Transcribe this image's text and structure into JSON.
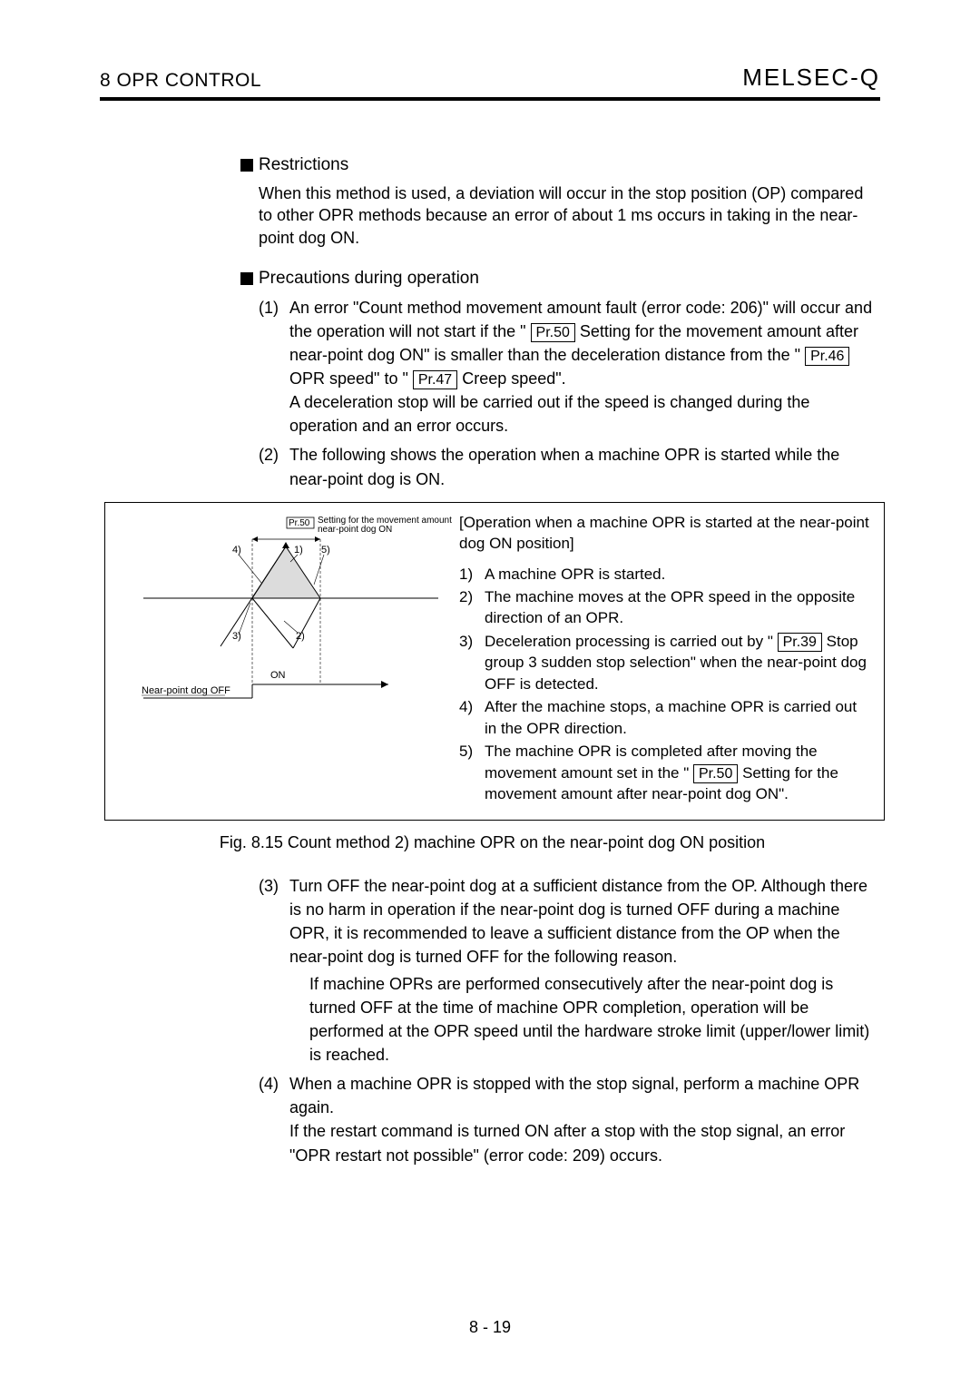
{
  "header": {
    "chapter": "8   OPR CONTROL",
    "brand": "MELSEC-Q"
  },
  "restrictions": {
    "heading": "Restrictions",
    "body": "When this method is used, a deviation will occur in the stop position (OP) compared to other OPR methods because an error of about 1 ms occurs in taking in the near-point dog ON."
  },
  "precautions": {
    "heading": "Precautions during operation",
    "items": [
      {
        "n": "(1)",
        "parts": [
          "An error \"Count method movement amount fault (error code: 206)\" will occur and the operation will not start if the \" ",
          {
            "pr": "Pr.50"
          },
          "  Setting for the movement amount after near-point dog ON\" is smaller than the deceleration distance from the \" ",
          {
            "pr": "Pr.46"
          },
          "  OPR speed\" to \" ",
          {
            "pr": "Pr.47"
          },
          "  Creep speed\".",
          {
            "br": true
          },
          "A deceleration stop will be carried out if the speed is changed during the operation and an error occurs."
        ]
      },
      {
        "n": "(2)",
        "parts": [
          "The following shows the operation when a machine OPR is started while the near-point dog is ON."
        ]
      }
    ]
  },
  "figure": {
    "diagram": {
      "topLabelPr": "Pr.50",
      "topLabelText": "Setting for the movement amount after near-point dog ON",
      "callouts": {
        "c1": "1)",
        "c2": "2)",
        "c3": "3)",
        "c4": "4)",
        "c5": "5)"
      },
      "onLabel": "ON",
      "offLabel": "Near-point dog OFF"
    },
    "rightTitle": "[Operation when a machine OPR is started at the near-point dog ON position]",
    "rightItems": [
      {
        "n": "1)",
        "parts": [
          "A machine OPR is started."
        ]
      },
      {
        "n": "2)",
        "parts": [
          "The machine moves at the OPR speed in the opposite direction of an OPR."
        ]
      },
      {
        "n": "3)",
        "parts": [
          "Deceleration processing is carried out by \" ",
          {
            "pr": "Pr.39"
          },
          "  Stop group 3 sudden stop selection\" when the near-point dog OFF is detected."
        ]
      },
      {
        "n": "4)",
        "parts": [
          "After the machine stops, a machine OPR is carried out in the OPR direction."
        ]
      },
      {
        "n": "5)",
        "parts": [
          "The machine OPR is completed after moving the movement amount set in the \" ",
          {
            "pr": "Pr.50"
          },
          " Setting for the movement amount after near-point dog ON\"."
        ]
      }
    ],
    "caption": "Fig. 8.15 Count method 2) machine OPR on the near-point dog ON position"
  },
  "afterFigure": {
    "items": [
      {
        "n": "(3)",
        "parts": [
          "Turn OFF the near-point dog at a sufficient distance from the OP. Although there is no harm in operation if the near-point dog is turned OFF during a machine OPR, it is recommended to leave a sufficient distance from the OP when the near-point dog is turned OFF for the following reason.",
          {
            "br": true
          },
          {
            "indent": true,
            "text": "If machine OPRs are performed consecutively after the near-point dog is turned OFF at the time of machine OPR completion, operation will be performed at the OPR speed until the hardware stroke limit (upper/lower limit) is reached."
          }
        ]
      },
      {
        "n": "(4)",
        "parts": [
          "When a machine OPR is stopped with the stop signal, perform a machine OPR again.",
          {
            "br": true
          },
          "If the restart command is turned ON after a stop with the stop signal, an error \"OPR restart not possible\" (error code: 209) occurs."
        ]
      }
    ]
  },
  "pageNumber": "8 - 19"
}
